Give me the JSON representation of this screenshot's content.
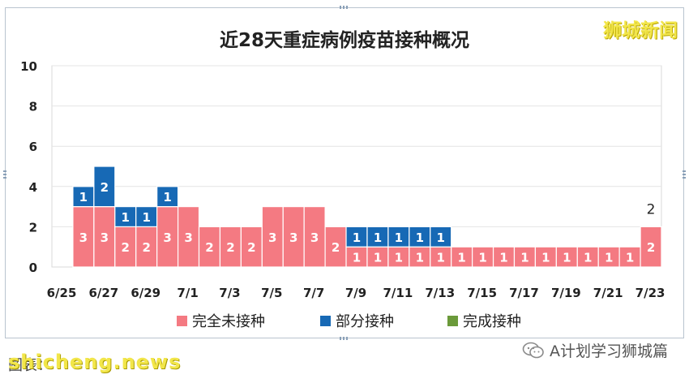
{
  "brand": "狮城新闻",
  "source_label": "图表：",
  "watermark": "shicheng.news",
  "account": "A计划学习狮城篇",
  "colors": {
    "unvaccinated": "#f47a82",
    "partial": "#1769b5",
    "full": "#6b9a3a"
  },
  "chart_data": {
    "type": "bar",
    "stacked": true,
    "title": "近28天重症病例疫苗接种概况",
    "xlabel": "",
    "ylabel": "",
    "ylim": [
      0,
      10
    ],
    "yticks": [
      0,
      2,
      4,
      6,
      8,
      10
    ],
    "grid": true,
    "legend_position": "bottom",
    "categories": [
      "6/25",
      "6/26",
      "6/27",
      "6/28",
      "6/29",
      "6/30",
      "7/1",
      "7/2",
      "7/3",
      "7/4",
      "7/5",
      "7/6",
      "7/7",
      "7/8",
      "7/9",
      "7/10",
      "7/11",
      "7/12",
      "7/13",
      "7/14",
      "7/15",
      "7/16",
      "7/17",
      "7/18",
      "7/19",
      "7/20",
      "7/21",
      "7/22",
      "7/23"
    ],
    "tick_labels": [
      "6/25",
      "6/27",
      "6/29",
      "7/1",
      "7/3",
      "7/5",
      "7/7",
      "7/9",
      "7/11",
      "7/13",
      "7/15",
      "7/17",
      "7/19",
      "7/21",
      "7/23"
    ],
    "series": [
      {
        "name": "完全未接种",
        "values": [
          0,
          3,
          3,
          2,
          2,
          3,
          3,
          2,
          2,
          2,
          3,
          3,
          3,
          2,
          1,
          1,
          1,
          1,
          1,
          1,
          1,
          1,
          1,
          1,
          1,
          1,
          1,
          1,
          2
        ]
      },
      {
        "name": "部分接种",
        "values": [
          0,
          1,
          2,
          1,
          1,
          1,
          0,
          0,
          0,
          0,
          0,
          0,
          0,
          0,
          1,
          1,
          1,
          1,
          1,
          0,
          0,
          0,
          0,
          0,
          0,
          0,
          0,
          0,
          0
        ]
      },
      {
        "name": "完成接种",
        "values": [
          0,
          0,
          0,
          0,
          0,
          0,
          0,
          0,
          0,
          0,
          0,
          0,
          0,
          0,
          0,
          0,
          0,
          0,
          0,
          0,
          0,
          0,
          0,
          0,
          0,
          0,
          0,
          0,
          0
        ]
      }
    ],
    "annotations": [
      {
        "category": "7/23",
        "text": "2"
      }
    ]
  }
}
